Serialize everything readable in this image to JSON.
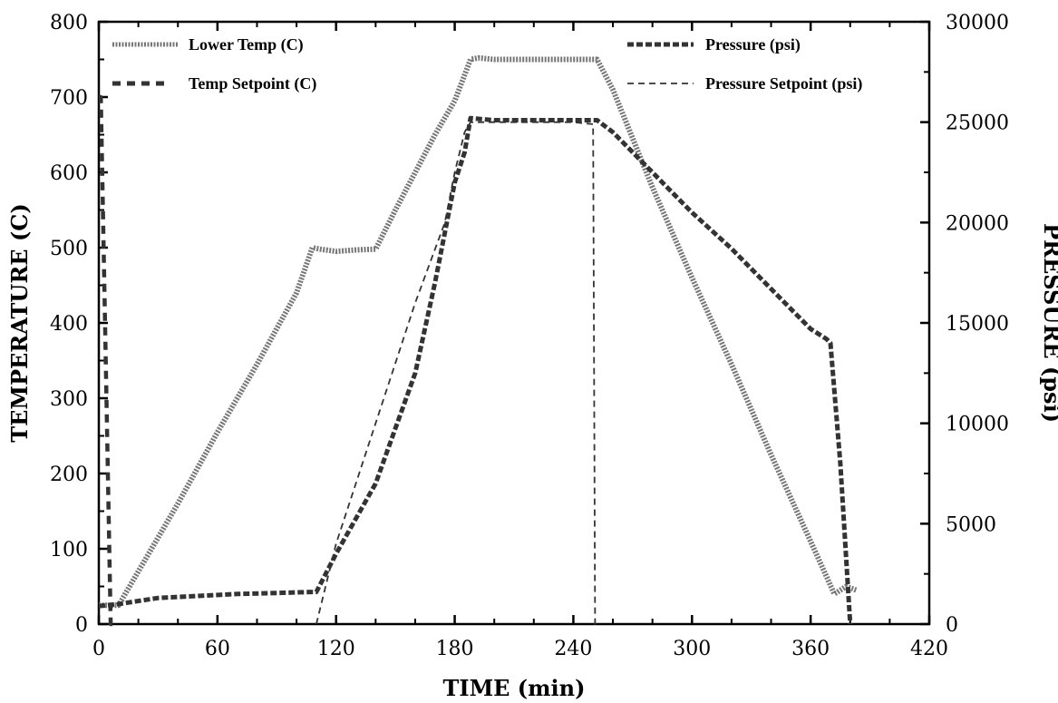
{
  "chart_data": {
    "type": "line",
    "xlabel": "TIME  (min)",
    "ylabel_left": "TEMPERATURE  (C)",
    "ylabel_right": "PRESSURE  (psi)",
    "xlim": [
      0,
      420
    ],
    "ylim_left": [
      0,
      800
    ],
    "ylim_right": [
      0,
      30000
    ],
    "x_ticks": [
      0,
      60,
      120,
      180,
      240,
      300,
      360,
      420
    ],
    "y_left_ticks": [
      0,
      100,
      200,
      300,
      400,
      500,
      600,
      700,
      800
    ],
    "y_right_ticks": [
      0,
      5000,
      10000,
      15000,
      20000,
      25000,
      30000
    ],
    "legend": [
      {
        "label": "Lower Temp (C)",
        "style": "thick-hatched",
        "placement": "top-left"
      },
      {
        "label": "Temp Setpoint (C)",
        "style": "thick-dashed",
        "placement": "top-left"
      },
      {
        "label": "Pressure (psi)",
        "style": "dense-dashed",
        "placement": "top-right"
      },
      {
        "label": "Pressure Setpoint (psi)",
        "style": "thin-dashed",
        "placement": "top-right"
      }
    ],
    "series": [
      {
        "name": "Lower Temp (C)",
        "axis": "left",
        "x": [
          0,
          10,
          20,
          40,
          60,
          80,
          100,
          108,
          112,
          120,
          130,
          140,
          150,
          160,
          170,
          180,
          188,
          192,
          200,
          220,
          240,
          252,
          260,
          280,
          300,
          320,
          340,
          360,
          372,
          378,
          383
        ],
        "y": [
          25,
          25,
          70,
          160,
          255,
          345,
          440,
          500,
          498,
          495,
          497,
          498,
          550,
          600,
          650,
          695,
          750,
          752,
          750,
          750,
          750,
          750,
          710,
          580,
          460,
          345,
          225,
          110,
          40,
          50,
          45
        ]
      },
      {
        "name": "Temp Setpoint (C)",
        "axis": "left",
        "x": [
          0,
          1,
          6,
          10
        ],
        "y": [
          700,
          700,
          0,
          0
        ]
      },
      {
        "name": "Pressure (psi)",
        "axis": "right",
        "x": [
          0,
          10,
          30,
          50,
          70,
          90,
          108,
          110,
          120,
          140,
          160,
          170,
          180,
          185,
          188,
          200,
          220,
          240,
          252,
          260,
          280,
          300,
          320,
          340,
          360,
          368,
          370,
          375,
          380
        ],
        "y": [
          900,
          1000,
          1300,
          1400,
          1500,
          1550,
          1600,
          1600,
          3500,
          7000,
          12500,
          17000,
          22000,
          23500,
          25200,
          25100,
          25100,
          25100,
          25100,
          24500,
          22500,
          20500,
          18700,
          16700,
          14700,
          14200,
          14000,
          8000,
          0
        ]
      },
      {
        "name": "Pressure Setpoint (psi)",
        "axis": "right",
        "x": [
          110,
          120,
          140,
          160,
          175,
          180,
          185,
          188,
          200,
          220,
          240,
          250,
          251,
          252
        ],
        "y": [
          0,
          4000,
          10000,
          16000,
          20000,
          22500,
          24500,
          25000,
          25000,
          25000,
          25000,
          24900,
          0,
          0
        ]
      }
    ]
  }
}
